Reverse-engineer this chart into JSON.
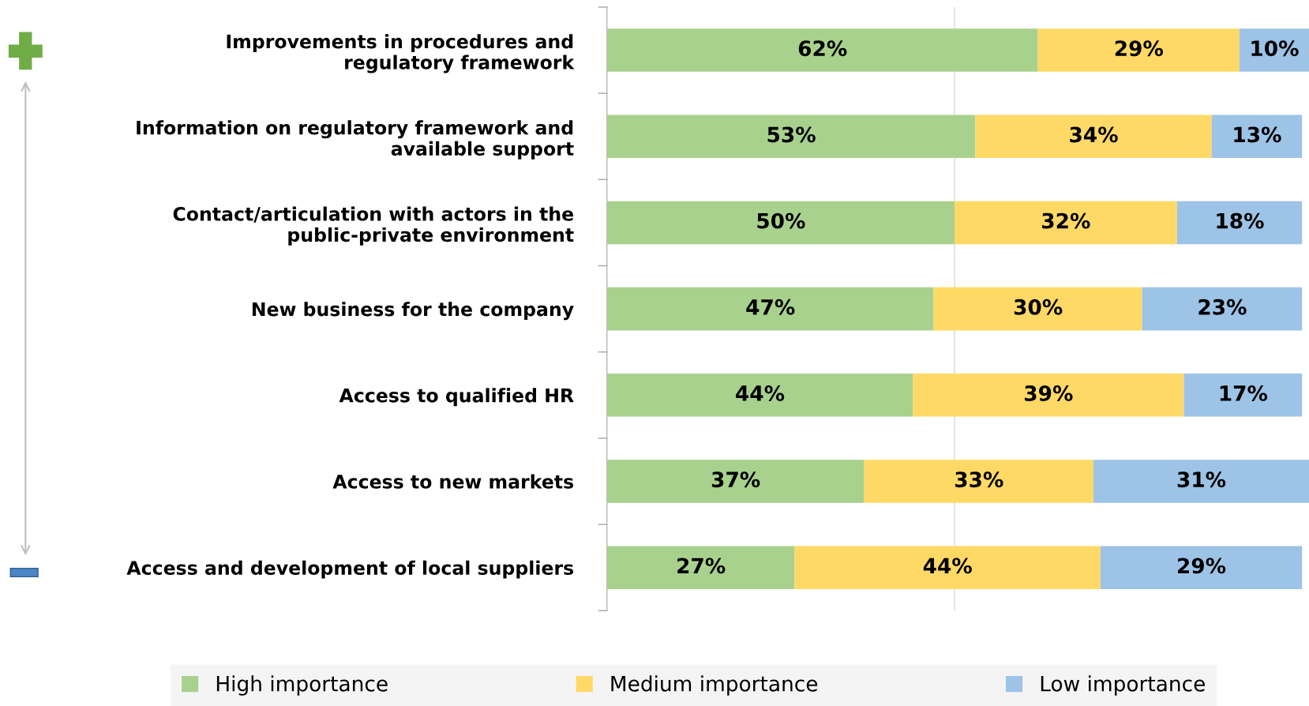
{
  "chart_data": {
    "type": "bar",
    "orientation": "horizontal",
    "stacked": true,
    "categories": [
      "Improvements in procedures and\nregulatory framework",
      "Information on regulatory framework and\navailable support",
      "Contact/articulation with actors in the\npublic-private environment",
      "New business for the company",
      "Access to qualified HR",
      "Access to new markets",
      "Access and development of local suppliers"
    ],
    "series": [
      {
        "name": "High importance",
        "color": "#a9d18e",
        "values": [
          62,
          53,
          50,
          47,
          44,
          37,
          27
        ],
        "value_labels": [
          "62%",
          "53%",
          "50%",
          "47%",
          "44%",
          "37%",
          "27%"
        ]
      },
      {
        "name": "Medium importance",
        "color": "#ffd966",
        "values": [
          29,
          34,
          32,
          30,
          39,
          33,
          44
        ],
        "value_labels": [
          "29%",
          "34%",
          "32%",
          "30%",
          "39%",
          "33%",
          "44%"
        ]
      },
      {
        "name": "Low importance",
        "color": "#9dc3e6",
        "values": [
          10,
          13,
          18,
          23,
          17,
          31,
          29
        ],
        "value_labels": [
          "10%",
          "13%",
          "18%",
          "23%",
          "17%",
          "31%",
          "29%"
        ]
      }
    ],
    "xlim": [
      0,
      101
    ],
    "ref_lines": [
      {
        "axis": "x",
        "value": 50,
        "color": "#d9d9d9"
      }
    ],
    "legend": "bottom",
    "tick_labels": "y"
  }
}
